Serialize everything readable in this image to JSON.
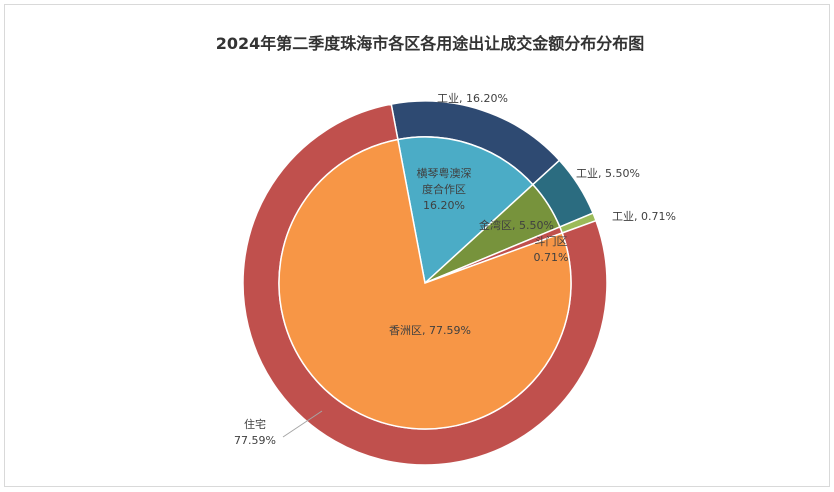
{
  "chart_data": {
    "type": "pie",
    "title": "2024年第二季度珠海市各区各用途出让成交金额分布分布图",
    "unit": "%",
    "legend": "none",
    "rings": {
      "inner": {
        "labels": [
          "横琴粤澳深度合作区",
          "金湾区",
          "斗门区",
          "香洲区"
        ],
        "values": [
          16.2,
          5.5,
          0.71,
          77.59
        ],
        "colors": [
          "#4BACC6",
          "#77933C",
          "#C0504D",
          "#F79646"
        ]
      },
      "outer": {
        "labels": [
          "工业",
          "工业",
          "工业",
          "住宅"
        ],
        "values": [
          16.2,
          5.5,
          0.71,
          77.59
        ],
        "colors": [
          "#2E4A72",
          "#2B6C80",
          "#9BBB59",
          "#C0504D"
        ]
      }
    }
  }
}
